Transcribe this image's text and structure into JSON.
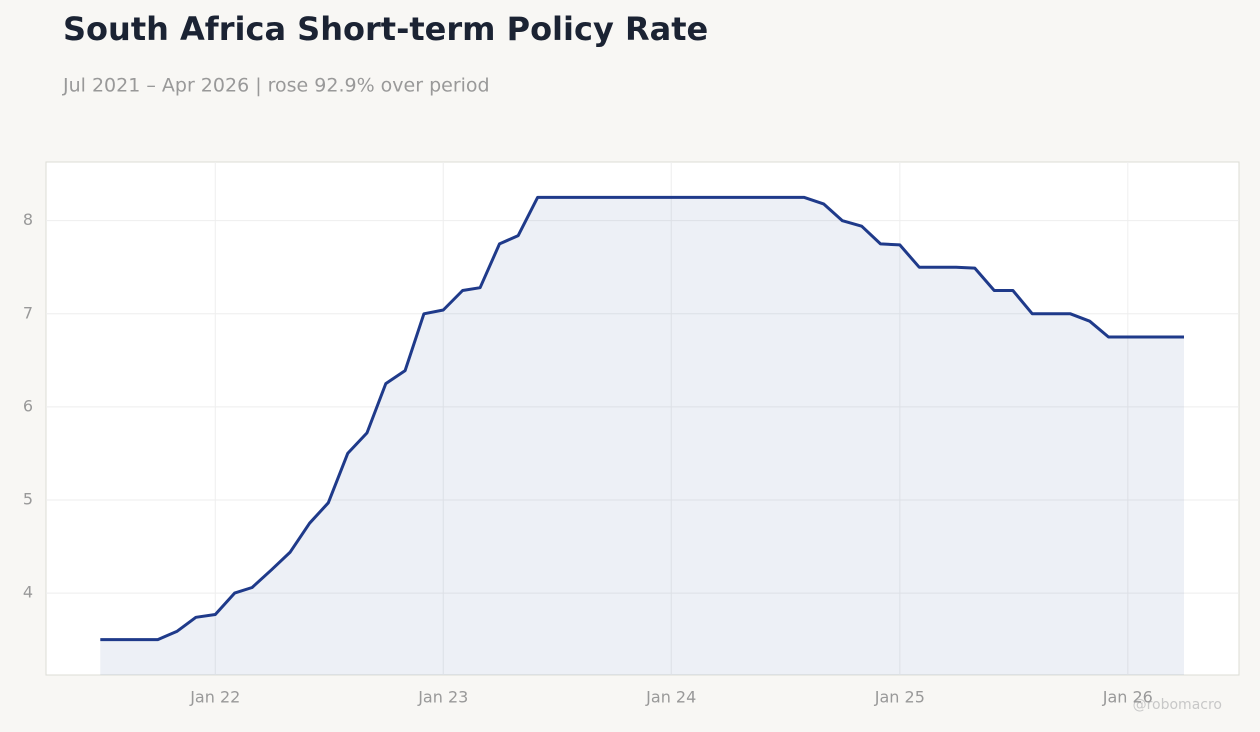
{
  "chart_data": {
    "type": "line",
    "title": "South Africa Short-term Policy Rate",
    "subtitle": "Jul 2021 – Apr 2026 | rose 92.9% over period",
    "watermark": "@robomacro",
    "x": [
      "2021-07",
      "2021-08",
      "2021-09",
      "2021-10",
      "2021-11",
      "2021-12",
      "2022-01",
      "2022-02",
      "2022-03",
      "2022-04",
      "2022-05",
      "2022-06",
      "2022-07",
      "2022-08",
      "2022-09",
      "2022-10",
      "2022-11",
      "2022-12",
      "2023-01",
      "2023-02",
      "2023-03",
      "2023-04",
      "2023-05",
      "2023-06",
      "2023-07",
      "2023-08",
      "2023-09",
      "2023-10",
      "2023-11",
      "2023-12",
      "2024-01",
      "2024-02",
      "2024-03",
      "2024-04",
      "2024-05",
      "2024-06",
      "2024-07",
      "2024-08",
      "2024-09",
      "2024-10",
      "2024-11",
      "2024-12",
      "2025-01",
      "2025-02",
      "2025-03",
      "2025-04",
      "2025-05",
      "2025-06",
      "2025-07",
      "2025-08",
      "2025-09",
      "2025-10",
      "2025-11",
      "2025-12",
      "2026-01",
      "2026-02",
      "2026-03",
      "2026-04"
    ],
    "values": [
      3.5,
      3.5,
      3.5,
      3.5,
      3.59,
      3.74,
      3.77,
      4.0,
      4.06,
      4.25,
      4.44,
      4.75,
      4.97,
      5.5,
      5.72,
      6.25,
      6.39,
      7.0,
      7.04,
      7.25,
      7.28,
      7.75,
      7.84,
      8.25,
      8.25,
      8.25,
      8.25,
      8.25,
      8.25,
      8.25,
      8.25,
      8.25,
      8.25,
      8.25,
      8.25,
      8.25,
      8.25,
      8.25,
      8.18,
      8.0,
      7.94,
      7.75,
      7.74,
      7.5,
      7.5,
      7.5,
      7.49,
      7.25,
      7.25,
      7.0,
      7.0,
      7.0,
      6.92,
      6.75,
      6.75,
      6.75,
      6.75,
      6.75
    ],
    "color": "#1f3a8a",
    "xlim": [
      "2021-04-05",
      "2026-06-28"
    ],
    "ylim": [
      3.12,
      8.63
    ],
    "xticks": [
      {
        "value": "2022-01",
        "label": "Jan 22"
      },
      {
        "value": "2023-01",
        "label": "Jan 23"
      },
      {
        "value": "2024-01",
        "label": "Jan 24"
      },
      {
        "value": "2025-01",
        "label": "Jan 25"
      },
      {
        "value": "2026-01",
        "label": "Jan 26"
      }
    ],
    "yticks": [
      4,
      5,
      6,
      7,
      8
    ],
    "grid": true
  }
}
